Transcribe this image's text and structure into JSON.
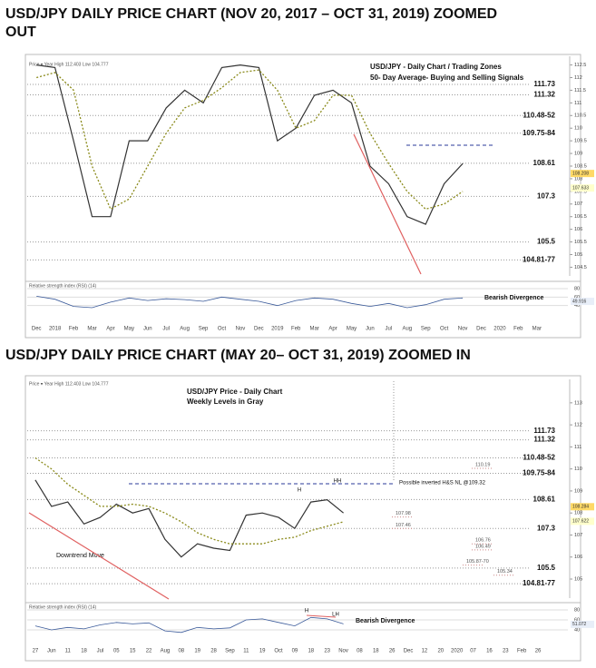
{
  "chart_data": [
    {
      "type": "line",
      "title": "USD/JPY DAILY PRICE CHART (NOV 20, 2017 – OCT 31, 2019) ZOOMED OUT",
      "info": "Price ▾  Year High 112.403 Low 104.777",
      "annotations": [
        "USD/JPY - Daily Chart / Trading Zones",
        "50- Day Average- Buying and Selling Signals",
        "Bearish Divergence"
      ],
      "categories": [
        "Dec",
        "2018",
        "Feb",
        "Mar",
        "Apr",
        "May",
        "Jun",
        "Jul",
        "Aug",
        "Sep",
        "Oct",
        "Nov",
        "Dec",
        "2019",
        "Feb",
        "Mar",
        "Apr",
        "May",
        "Jun",
        "Jul",
        "Aug",
        "Sep",
        "Oct",
        "Nov",
        "Dec",
        "2020",
        "Feb",
        "Mar"
      ],
      "series": [
        {
          "color": "#333333",
          "values": [
            112.5,
            112.4,
            109.5,
            106.5,
            106.5,
            109.5,
            109.5,
            110.8,
            111.5,
            111.0,
            112.4,
            112.5,
            112.4,
            109.5,
            110.0,
            111.3,
            111.5,
            111.0,
            108.5,
            107.8,
            106.5,
            106.2,
            107.8,
            108.6,
            null,
            null,
            null,
            null
          ]
        },
        {
          "color": "#8a8a1a",
          "values": [
            112.0,
            112.2,
            111.5,
            108.5,
            106.8,
            107.2,
            108.5,
            109.8,
            110.8,
            111.1,
            111.6,
            112.2,
            112.3,
            111.5,
            110.0,
            110.3,
            111.3,
            111.3,
            109.8,
            108.6,
            107.5,
            106.8,
            107.0,
            107.5,
            null,
            null,
            null,
            null
          ]
        }
      ],
      "levels": [
        111.73,
        111.32,
        {
          "value": 110.5,
          "label": "110.48-52"
        },
        {
          "value": 109.8,
          "label": "109.75-84"
        },
        108.61,
        107.3,
        105.5,
        {
          "value": 104.79,
          "label": "104.81-77"
        }
      ],
      "price_tags": [
        108.208,
        107.633
      ],
      "ylim": [
        104.3,
        112.7
      ],
      "yticks": [
        104.5,
        105,
        105.5,
        106,
        106.5,
        107,
        107.5,
        108,
        108.5,
        109,
        109.5,
        110,
        110.5,
        111,
        111.5,
        112,
        112.5
      ],
      "rsi_label": "Relative strength index (RSI) (14)",
      "rsi_values": [
        62,
        55,
        38,
        35,
        48,
        58,
        52,
        56,
        54,
        50,
        60,
        55,
        50,
        40,
        52,
        58,
        55,
        45,
        38,
        45,
        35,
        42,
        55,
        58,
        null,
        null,
        null,
        null
      ],
      "rsi_tag": 49.916,
      "rsi_ylim": [
        20,
        80
      ],
      "rsi_yticks": [
        40,
        60,
        80
      ]
    },
    {
      "type": "line",
      "title": "USD/JPY DAILY PRICE CHART (MAY 20– OCT 31, 2019) ZOOMED IN",
      "info": "Price ▾  Year High 112.403 Low 104.777",
      "annotations": [
        "USD/JPY Price - Daily Chart",
        "Weekly Levels in Gray",
        "Possible inverted H&S NL @109.32",
        "Downtrend Move",
        "H",
        "HH",
        "Bearish Divergence",
        "H",
        "LH"
      ],
      "categories": [
        "27",
        "Jun",
        "11",
        "18",
        "Jul",
        "05",
        "15",
        "22",
        "Aug",
        "08",
        "19",
        "28",
        "Sep",
        "11",
        "19",
        "Oct",
        "09",
        "18",
        "23",
        "Nov",
        "08",
        "18",
        "26",
        "Dec",
        "12",
        "20",
        "2020",
        "07",
        "16",
        "23",
        "Feb",
        "26"
      ],
      "series": [
        {
          "color": "#333333",
          "values": [
            109.5,
            108.3,
            108.5,
            107.5,
            107.8,
            108.4,
            108.0,
            108.2,
            106.8,
            106.0,
            106.6,
            106.4,
            106.3,
            107.9,
            108.0,
            107.8,
            107.3,
            108.5,
            108.6,
            108.0,
            null,
            null,
            null,
            null,
            null,
            null,
            null,
            null,
            null,
            null,
            null,
            null
          ]
        },
        {
          "color": "#8a8a1a",
          "values": [
            110.5,
            110.0,
            109.3,
            108.8,
            108.3,
            108.3,
            108.4,
            108.3,
            108.0,
            107.6,
            107.1,
            106.8,
            106.6,
            106.6,
            106.6,
            106.8,
            106.9,
            107.2,
            107.4,
            107.6,
            null,
            null,
            null,
            null,
            null,
            null,
            null,
            null,
            null,
            null,
            null,
            null
          ]
        }
      ],
      "levels": [
        111.73,
        111.32,
        {
          "value": 110.5,
          "label": "110.48-52"
        },
        {
          "value": 109.8,
          "label": "109.75-84"
        },
        108.61,
        107.3,
        105.5,
        {
          "value": 104.79,
          "label": "104.81-77"
        }
      ],
      "minor_levels": [
        107.98,
        107.46,
        106.76,
        106.49,
        {
          "value": 105.8,
          "label": "105.87-70"
        },
        105.34,
        110.19
      ],
      "price_tags": [
        108.284,
        107.622
      ],
      "ylim": [
        104.3,
        113.9
      ],
      "yticks": [
        105,
        106,
        107,
        108,
        109,
        110,
        111,
        112,
        113
      ],
      "rsi_label": "Relative strength index (RSI) (14)",
      "rsi_values": [
        48,
        40,
        45,
        42,
        50,
        55,
        52,
        54,
        38,
        35,
        45,
        42,
        44,
        60,
        62,
        55,
        48,
        65,
        62,
        52,
        null,
        null,
        null,
        null,
        null,
        null,
        null,
        null,
        null,
        null,
        null,
        null
      ],
      "rsi_tag": 51.072,
      "rsi_ylim": [
        20,
        80
      ],
      "rsi_yticks": [
        40,
        60,
        80
      ]
    }
  ]
}
